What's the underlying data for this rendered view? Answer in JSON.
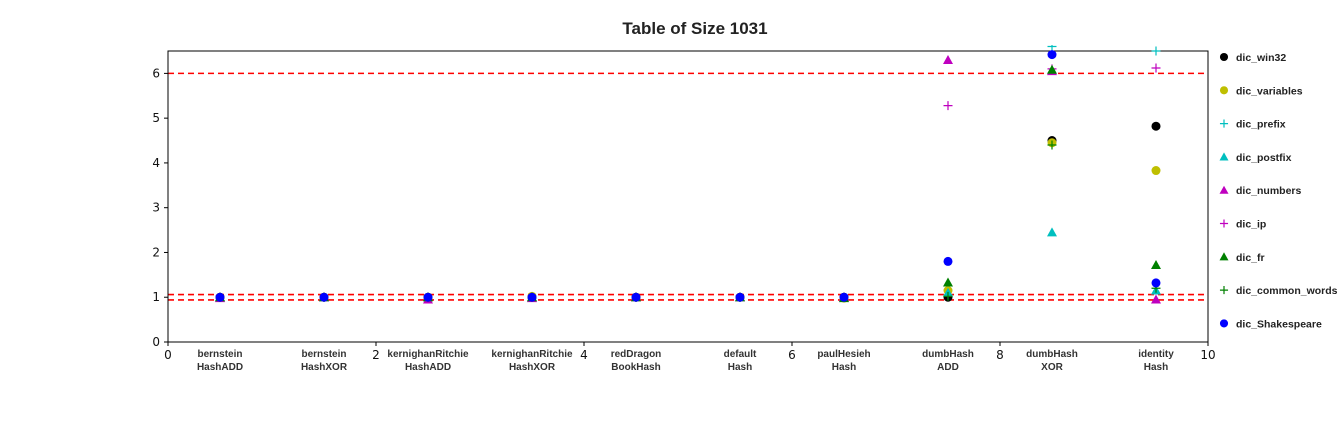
{
  "chart_data": {
    "type": "scatter",
    "title": "Table of Size 1031",
    "xlim": [
      0,
      10
    ],
    "ylim": [
      0,
      6.5
    ],
    "x_ticks": [
      0,
      2,
      4,
      6,
      8,
      10
    ],
    "y_ticks": [
      0,
      1,
      2,
      3,
      4,
      5,
      6
    ],
    "grid": false,
    "legend_position": "right-outside",
    "categories": [
      {
        "x": 0.5,
        "line1": "bernstein",
        "line2": "HashADD"
      },
      {
        "x": 1.5,
        "line1": "bernstein",
        "line2": "HashXOR"
      },
      {
        "x": 2.5,
        "line1": "kernighanRitchie",
        "line2": "HashADD"
      },
      {
        "x": 3.5,
        "line1": "kernighanRitchie",
        "line2": "HashXOR"
      },
      {
        "x": 4.5,
        "line1": "redDragon",
        "line2": "BookHash"
      },
      {
        "x": 5.5,
        "line1": "default",
        "line2": "Hash"
      },
      {
        "x": 6.5,
        "line1": "paulHesieh",
        "line2": "Hash"
      },
      {
        "x": 7.5,
        "line1": "dumbHash",
        "line2": "ADD"
      },
      {
        "x": 8.5,
        "line1": "dumbHash",
        "line2": "XOR"
      },
      {
        "x": 9.5,
        "line1": "identity",
        "line2": "Hash"
      }
    ],
    "reference_lines": [
      {
        "y": 6.0,
        "color": "#ff0000",
        "style": "dashed"
      },
      {
        "y": 1.06,
        "color": "#ff0000",
        "style": "dashed"
      },
      {
        "y": 0.94,
        "color": "#ff0000",
        "style": "dashed"
      }
    ],
    "series": [
      {
        "name": "dic_win32",
        "marker": "circle",
        "color": "#000000",
        "points": [
          [
            0.5,
            1.0
          ],
          [
            1.5,
            1.0
          ],
          [
            2.5,
            1.0
          ],
          [
            3.5,
            1.0
          ],
          [
            4.5,
            1.0
          ],
          [
            5.5,
            1.0
          ],
          [
            6.5,
            1.0
          ],
          [
            7.5,
            1.0
          ],
          [
            8.5,
            4.5
          ],
          [
            9.5,
            4.82
          ]
        ]
      },
      {
        "name": "dic_variables",
        "marker": "circle",
        "color": "#bfbf00",
        "points": [
          [
            0.5,
            1.0
          ],
          [
            1.5,
            1.0
          ],
          [
            2.5,
            1.0
          ],
          [
            3.5,
            1.02
          ],
          [
            4.5,
            1.0
          ],
          [
            5.5,
            1.0
          ],
          [
            6.5,
            0.98
          ],
          [
            7.5,
            1.15
          ],
          [
            8.5,
            4.45
          ],
          [
            9.5,
            3.83
          ]
        ]
      },
      {
        "name": "dic_prefix",
        "marker": "plus",
        "color": "#00bfbf",
        "points": [
          [
            0.5,
            1.0
          ],
          [
            1.5,
            1.0
          ],
          [
            2.5,
            1.0
          ],
          [
            3.5,
            1.0
          ],
          [
            4.5,
            1.0
          ],
          [
            5.5,
            1.0
          ],
          [
            6.5,
            1.0
          ],
          [
            7.5,
            1.05
          ],
          [
            8.5,
            6.6
          ],
          [
            9.5,
            6.5
          ]
        ]
      },
      {
        "name": "dic_postfix",
        "marker": "triangle",
        "color": "#00bfbf",
        "points": [
          [
            0.5,
            1.0
          ],
          [
            1.5,
            1.0
          ],
          [
            2.5,
            1.0
          ],
          [
            3.5,
            1.0
          ],
          [
            4.5,
            1.0
          ],
          [
            5.5,
            1.0
          ],
          [
            6.5,
            1.0
          ],
          [
            7.5,
            1.1
          ],
          [
            8.5,
            2.45
          ],
          [
            9.5,
            1.15
          ]
        ]
      },
      {
        "name": "dic_numbers",
        "marker": "triangle",
        "color": "#bf00bf",
        "points": [
          [
            0.5,
            0.98
          ],
          [
            1.5,
            1.0
          ],
          [
            2.5,
            0.95
          ],
          [
            3.5,
            0.98
          ],
          [
            4.5,
            1.0
          ],
          [
            5.5,
            1.0
          ],
          [
            6.5,
            1.0
          ],
          [
            7.5,
            6.3
          ],
          [
            8.5,
            6.05
          ],
          [
            9.5,
            0.95
          ]
        ]
      },
      {
        "name": "dic_ip",
        "marker": "plus",
        "color": "#bf00bf",
        "points": [
          [
            0.5,
            1.0
          ],
          [
            1.5,
            1.0
          ],
          [
            2.5,
            1.0
          ],
          [
            3.5,
            1.0
          ],
          [
            4.5,
            1.0
          ],
          [
            5.5,
            1.0
          ],
          [
            6.5,
            1.0
          ],
          [
            7.5,
            5.28
          ],
          [
            8.5,
            6.1
          ],
          [
            9.5,
            6.12
          ]
        ]
      },
      {
        "name": "dic_fr",
        "marker": "triangle",
        "color": "#008000",
        "points": [
          [
            0.5,
            1.0
          ],
          [
            1.5,
            1.0
          ],
          [
            2.5,
            1.0
          ],
          [
            3.5,
            1.0
          ],
          [
            4.5,
            1.0
          ],
          [
            5.5,
            1.0
          ],
          [
            6.5,
            0.98
          ],
          [
            7.5,
            1.33
          ],
          [
            8.5,
            6.08
          ],
          [
            9.5,
            1.72
          ]
        ]
      },
      {
        "name": "dic_common_words",
        "marker": "plus",
        "color": "#008000",
        "points": [
          [
            0.5,
            1.0
          ],
          [
            1.5,
            1.0
          ],
          [
            2.5,
            1.0
          ],
          [
            3.5,
            1.0
          ],
          [
            4.5,
            1.0
          ],
          [
            5.5,
            1.0
          ],
          [
            6.5,
            1.0
          ],
          [
            7.5,
            1.02
          ],
          [
            8.5,
            4.4
          ],
          [
            9.5,
            1.2
          ]
        ]
      },
      {
        "name": "dic_Shakespeare",
        "marker": "circle",
        "color": "#0000ff",
        "points": [
          [
            0.5,
            1.0
          ],
          [
            1.5,
            1.0
          ],
          [
            2.5,
            1.0
          ],
          [
            3.5,
            1.0
          ],
          [
            4.5,
            1.0
          ],
          [
            5.5,
            1.0
          ],
          [
            6.5,
            1.0
          ],
          [
            7.5,
            1.8
          ],
          [
            8.5,
            6.42
          ],
          [
            9.5,
            1.32
          ]
        ]
      }
    ]
  }
}
